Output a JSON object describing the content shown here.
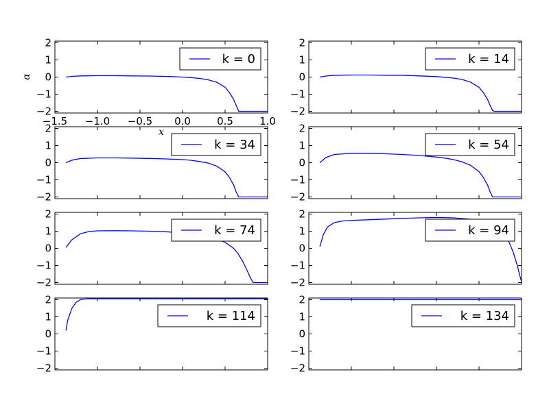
{
  "chart_data": {
    "type": "line",
    "layout": "4x2 subplot grid",
    "line_color": "#0000ff",
    "xlabel": "x",
    "ylabel": "α",
    "xlim": [
      -1.5,
      1.0
    ],
    "ylim": [
      -2.1,
      2.1
    ],
    "xticks": [
      "−1.5",
      "−1.0",
      "−0.5",
      "0.0",
      "0.5",
      "1.0"
    ],
    "yticks": [
      "−2",
      "−1",
      "0",
      "1",
      "2"
    ],
    "legend_placement": "upper-right",
    "panels": [
      {
        "legend": "k = 0",
        "x": [
          -1.37,
          -1.3,
          -1.2,
          -1.0,
          -0.8,
          -0.6,
          -0.4,
          -0.2,
          0.0,
          0.1,
          0.2,
          0.3,
          0.4,
          0.5,
          0.55,
          0.6,
          0.63,
          0.66,
          0.68,
          0.7,
          0.8,
          0.9,
          1.0
        ],
        "y": [
          0.0,
          0.04,
          0.07,
          0.08,
          0.08,
          0.07,
          0.06,
          0.04,
          0.0,
          -0.03,
          -0.08,
          -0.16,
          -0.3,
          -0.6,
          -0.9,
          -1.3,
          -1.65,
          -2.0,
          -2.0,
          -2.0,
          -2.0,
          -2.0,
          -2.0
        ]
      },
      {
        "legend": "k = 14",
        "x": [
          -1.37,
          -1.3,
          -1.2,
          -1.0,
          -0.8,
          -0.6,
          -0.4,
          -0.2,
          0.0,
          0.1,
          0.2,
          0.3,
          0.4,
          0.5,
          0.55,
          0.6,
          0.63,
          0.66,
          0.68,
          0.7,
          0.8,
          0.9,
          1.0
        ],
        "y": [
          0.0,
          0.06,
          0.1,
          0.12,
          0.12,
          0.11,
          0.1,
          0.07,
          0.03,
          -0.01,
          -0.06,
          -0.14,
          -0.29,
          -0.6,
          -0.9,
          -1.3,
          -1.65,
          -1.95,
          -2.0,
          -2.0,
          -2.0,
          -2.0,
          -2.0
        ]
      },
      {
        "legend": "k = 34",
        "x": [
          -1.37,
          -1.3,
          -1.2,
          -1.0,
          -0.8,
          -0.6,
          -0.4,
          -0.2,
          0.0,
          0.1,
          0.2,
          0.3,
          0.4,
          0.5,
          0.55,
          0.6,
          0.63,
          0.66,
          0.68,
          0.7,
          0.8,
          0.9,
          1.0
        ],
        "y": [
          0.0,
          0.15,
          0.24,
          0.28,
          0.28,
          0.27,
          0.25,
          0.22,
          0.18,
          0.14,
          0.07,
          -0.02,
          -0.19,
          -0.53,
          -0.85,
          -1.3,
          -1.7,
          -2.0,
          -2.0,
          -2.0,
          -2.0,
          -2.0,
          -2.0
        ]
      },
      {
        "legend": "k = 54",
        "x": [
          -1.37,
          -1.3,
          -1.2,
          -1.0,
          -0.8,
          -0.6,
          -0.4,
          -0.2,
          0.0,
          0.1,
          0.2,
          0.3,
          0.4,
          0.5,
          0.55,
          0.6,
          0.63,
          0.66,
          0.68,
          0.7,
          0.8,
          0.9,
          1.0
        ],
        "y": [
          0.0,
          0.3,
          0.48,
          0.55,
          0.55,
          0.52,
          0.48,
          0.42,
          0.33,
          0.27,
          0.18,
          0.05,
          -0.15,
          -0.52,
          -0.85,
          -1.3,
          -1.7,
          -2.0,
          -2.0,
          -2.0,
          -2.0,
          -2.0,
          -2.0
        ]
      },
      {
        "legend": "k = 74",
        "x": [
          -1.37,
          -1.3,
          -1.2,
          -1.1,
          -1.0,
          -0.8,
          -0.6,
          -0.4,
          -0.2,
          0.0,
          0.2,
          0.4,
          0.5,
          0.6,
          0.65,
          0.7,
          0.75,
          0.8,
          0.83,
          0.86,
          0.9,
          1.0
        ],
        "y": [
          0.05,
          0.5,
          0.85,
          0.98,
          1.02,
          1.03,
          1.02,
          1.0,
          0.97,
          0.91,
          0.8,
          0.55,
          0.35,
          0.0,
          -0.3,
          -0.7,
          -1.2,
          -1.75,
          -2.0,
          -2.0,
          -2.0,
          -2.0
        ]
      },
      {
        "legend": "k = 94",
        "x": [
          -1.37,
          -1.33,
          -1.28,
          -1.2,
          -1.1,
          -1.0,
          -0.8,
          -0.6,
          -0.4,
          -0.2,
          0.0,
          0.2,
          0.4,
          0.6,
          0.7,
          0.8,
          0.85,
          0.9,
          0.95,
          0.98,
          1.0
        ],
        "y": [
          0.1,
          0.8,
          1.25,
          1.5,
          1.6,
          1.63,
          1.67,
          1.71,
          1.75,
          1.78,
          1.8,
          1.78,
          1.7,
          1.5,
          1.2,
          0.8,
          0.4,
          -0.2,
          -1.0,
          -1.6,
          -1.95
        ]
      },
      {
        "legend": "k = 114",
        "x": [
          -1.37,
          -1.35,
          -1.3,
          -1.25,
          -1.2,
          -1.15,
          -1.1,
          -1.0,
          -0.5,
          0.0,
          0.5,
          1.0
        ],
        "y": [
          0.2,
          0.8,
          1.5,
          1.85,
          2.0,
          2.04,
          2.05,
          2.05,
          2.05,
          2.05,
          2.05,
          2.05
        ]
      },
      {
        "legend": "k = 134",
        "x": [
          -1.37,
          -1.0,
          -0.5,
          0.0,
          0.5,
          1.0
        ],
        "y": [
          2.0,
          2.0,
          2.0,
          2.0,
          2.0,
          2.0
        ]
      }
    ]
  }
}
